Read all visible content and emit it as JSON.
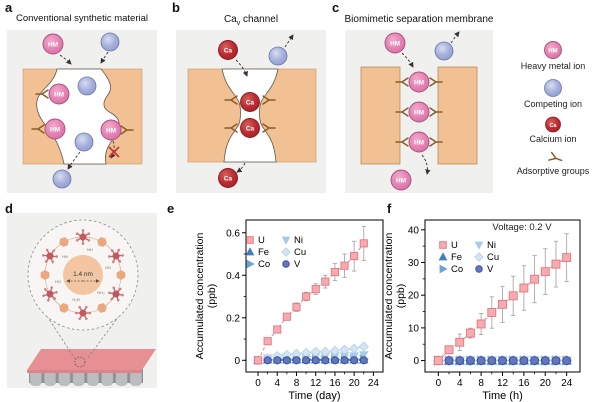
{
  "figure": {
    "panels": {
      "a": {
        "label": "a",
        "title": "Conventional synthetic material"
      },
      "b": {
        "label": "b",
        "title_pre": "Ca",
        "title_sub": "v",
        "title_post": " channel"
      },
      "c": {
        "label": "c",
        "title": "Biomimetic separation membrane"
      },
      "d": {
        "label": "d",
        "pore_size": "1.4 nm",
        "ring_labels": [
          "NH",
          "OH",
          "NH₂",
          "H₂N",
          "HO",
          "HN"
        ]
      },
      "e": {
        "label": "e"
      },
      "f": {
        "label": "f"
      }
    },
    "ions": {
      "hm": "HM",
      "ca": "Ca"
    },
    "legend": [
      {
        "icon": "heavy-metal-ion",
        "label": "Heavy metal ion"
      },
      {
        "icon": "competing-ion",
        "label": "Competing ion"
      },
      {
        "icon": "calcium-ion",
        "label": "Calcium ion"
      },
      {
        "icon": "adsorptive-groups",
        "label": "Adsorptive groups"
      }
    ],
    "colors": {
      "panel_bg": "#f0f0ee",
      "membrane_orange": "#f2c193",
      "heavy_metal_pink": "#e583b4",
      "competing_blue": "#a9b2dc",
      "calcium_red": "#bb2b30",
      "adsorptive_brown": "#8a5a28",
      "uranium_pink": "#e4777e",
      "error_bar_gray": "#a8a8a8"
    }
  },
  "chart_data": [
    {
      "type": "scatter",
      "panel": "e",
      "xlabel": "Time (day)",
      "ylabel_lines": [
        "Accumulated concentration",
        "(ppb)"
      ],
      "xlim": [
        0,
        24
      ],
      "ylim": [
        0,
        0.6
      ],
      "xticks": [
        0,
        4,
        8,
        12,
        16,
        20,
        24
      ],
      "yticks": [
        0,
        0.2,
        0.4,
        0.6
      ],
      "grid": false,
      "legend_position": "upper-left",
      "x": [
        0,
        2,
        4,
        6,
        8,
        10,
        12,
        14,
        16,
        18,
        20,
        22
      ],
      "series": [
        {
          "name": "U",
          "marker": "square",
          "color": "#e4777e",
          "fill": "#f5abb0",
          "values": [
            0,
            0.09,
            0.145,
            0.205,
            0.25,
            0.3,
            0.335,
            0.37,
            0.415,
            0.445,
            0.49,
            0.55
          ],
          "err": [
            0.005,
            0.01,
            0.01,
            0.015,
            0.02,
            0.02,
            0.025,
            0.03,
            0.04,
            0.055,
            0.07,
            0.08
          ]
        },
        {
          "name": "Fe",
          "marker": "triangle-up",
          "color": "#3f7fba",
          "fill": "#3f7fba",
          "values": [
            0,
            0.003,
            0.003,
            0.003,
            0.003,
            0.003,
            0.003,
            0.003,
            0.003,
            0.003,
            0.003,
            0.003
          ],
          "err": 0.005
        },
        {
          "name": "Co",
          "marker": "triangle-right",
          "color": "#6aa3d5",
          "fill": "#6aa3d5",
          "values": [
            0,
            0.006,
            0.006,
            0.006,
            0.006,
            0.006,
            0.006,
            0.006,
            0.006,
            0.006,
            0.006,
            0.006
          ],
          "err": 0.005
        },
        {
          "name": "Ni",
          "marker": "triangle-down",
          "color": "#a6cbe8",
          "fill": "#a6cbe8",
          "values": [
            0,
            0.01,
            0.01,
            0.015,
            0.015,
            0.015,
            0.02,
            0.02,
            0.02,
            0.02,
            0.02,
            0.025
          ],
          "err": 0.01
        },
        {
          "name": "Cu",
          "marker": "diamond",
          "color": "#b9d3ea",
          "fill": "#d4e4f4",
          "values": [
            0,
            0.01,
            0.02,
            0.025,
            0.03,
            0.035,
            0.04,
            0.04,
            0.045,
            0.05,
            0.055,
            0.065
          ],
          "err": 0.012
        },
        {
          "name": "V",
          "marker": "circle",
          "color": "#33499b",
          "fill": "#6277bc",
          "values": [
            0,
            0,
            0,
            0,
            0,
            0,
            0,
            0,
            0,
            0,
            0,
            0
          ],
          "err": 0.006
        }
      ]
    },
    {
      "type": "scatter",
      "panel": "f",
      "annotation": "Voltage: 0.2 V",
      "xlabel": "Time (h)",
      "ylabel_lines": [
        "Accumulated concentration",
        "(ppb)"
      ],
      "xlim": [
        0,
        24
      ],
      "ylim": [
        0,
        40
      ],
      "xticks": [
        0,
        4,
        8,
        12,
        16,
        20,
        24
      ],
      "yticks": [
        0,
        10,
        20,
        30,
        40
      ],
      "grid": false,
      "legend_position": "upper-left",
      "x": [
        0,
        2,
        4,
        6,
        8,
        10,
        12,
        14,
        16,
        18,
        20,
        22,
        24
      ],
      "series": [
        {
          "name": "U",
          "marker": "square",
          "color": "#e4777e",
          "fill": "#f5abb0",
          "values": [
            0,
            3.3,
            5.6,
            8.4,
            11.2,
            14.7,
            17.2,
            19.8,
            22.2,
            24.9,
            27.2,
            29.5,
            31.5
          ],
          "err": [
            0.2,
            0.8,
            2.5,
            1.5,
            3.2,
            4.8,
            5.5,
            6,
            6.8,
            7.2,
            7,
            7,
            7.3
          ]
        },
        {
          "name": "Fe",
          "marker": "triangle-up",
          "color": "#3f7fba",
          "fill": "#3f7fba",
          "values": [
            0,
            0,
            0,
            0,
            0,
            0,
            0,
            0,
            0,
            0,
            0,
            0,
            0
          ],
          "err": 0.3
        },
        {
          "name": "Co",
          "marker": "triangle-right",
          "color": "#6aa3d5",
          "fill": "#6aa3d5",
          "values": [
            0,
            0,
            0,
            0,
            0,
            0,
            0,
            0,
            0,
            0,
            0,
            0,
            0
          ],
          "err": 0.3
        },
        {
          "name": "Ni",
          "marker": "triangle-down",
          "color": "#a6cbe8",
          "fill": "#a6cbe8",
          "values": [
            0,
            0,
            0,
            0,
            0,
            0,
            0,
            0,
            0,
            0,
            0,
            0,
            0
          ],
          "err": 0.5
        },
        {
          "name": "Cu",
          "marker": "diamond",
          "color": "#b9d3ea",
          "fill": "#d4e4f4",
          "values": [
            0,
            0,
            0,
            0,
            0,
            0,
            0,
            0,
            0,
            0,
            0,
            0,
            0
          ],
          "err": 0.5
        },
        {
          "name": "V",
          "marker": "circle",
          "color": "#33499b",
          "fill": "#6277bc",
          "values": [
            0,
            0,
            0,
            0,
            0,
            0,
            0,
            0,
            0,
            0,
            0,
            0,
            0
          ],
          "err": 0.4
        }
      ]
    }
  ]
}
